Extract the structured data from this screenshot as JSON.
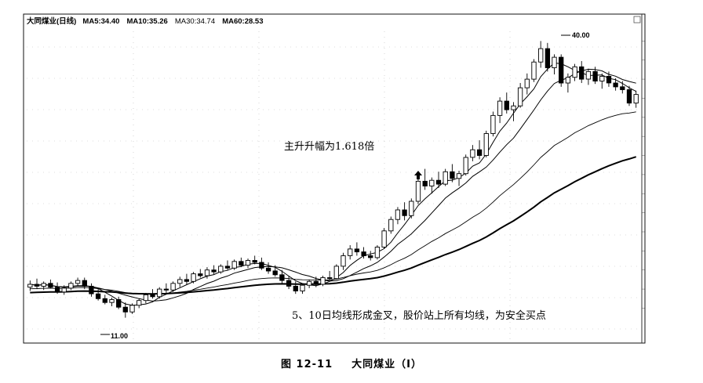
{
  "header": {
    "name": "大同煤业(日线)",
    "ma5": "MA5:34.40",
    "ma10": "MA10:35.26",
    "ma30": "MA30:34.74",
    "ma60": "MA60:28.53"
  },
  "caption": {
    "fig_no": "图 12-11",
    "title": "大同煤业（Ⅰ）"
  },
  "chart_data": {
    "type": "candlestick",
    "title": "大同煤业(日线)",
    "price_range": [
      9,
      42
    ],
    "series": [
      {
        "name": "MA5",
        "last": 34.4
      },
      {
        "name": "MA10",
        "last": 35.26
      },
      {
        "name": "MA30",
        "last": 34.74
      },
      {
        "name": "MA60",
        "last": 28.53
      }
    ],
    "ohlc": [
      [
        14.2,
        14.9,
        13.8,
        14.5
      ],
      [
        14.5,
        15.1,
        14.0,
        14.3
      ],
      [
        14.3,
        14.8,
        13.9,
        14.6
      ],
      [
        14.6,
        15.0,
        14.1,
        14.2
      ],
      [
        14.2,
        14.7,
        13.5,
        13.7
      ],
      [
        13.7,
        14.4,
        13.4,
        14.1
      ],
      [
        14.1,
        14.8,
        13.9,
        14.6
      ],
      [
        14.6,
        15.2,
        14.3,
        14.9
      ],
      [
        14.9,
        15.2,
        14.0,
        14.3
      ],
      [
        14.3,
        14.6,
        13.2,
        13.5
      ],
      [
        13.5,
        14.0,
        12.8,
        13.0
      ],
      [
        13.0,
        13.4,
        12.4,
        12.6
      ],
      [
        12.6,
        13.1,
        12.2,
        12.9
      ],
      [
        12.9,
        13.2,
        11.9,
        12.1
      ],
      [
        12.1,
        12.6,
        11.0,
        11.6
      ],
      [
        11.6,
        12.5,
        11.4,
        12.3
      ],
      [
        12.3,
        13.0,
        12.0,
        12.8
      ],
      [
        12.8,
        13.6,
        12.5,
        13.4
      ],
      [
        13.4,
        14.0,
        13.0,
        13.2
      ],
      [
        13.2,
        14.2,
        13.0,
        14.0
      ],
      [
        14.0,
        14.6,
        13.6,
        13.9
      ],
      [
        13.9,
        14.8,
        13.7,
        14.6
      ],
      [
        14.6,
        15.3,
        14.2,
        15.0
      ],
      [
        15.0,
        15.6,
        14.5,
        14.8
      ],
      [
        14.8,
        15.8,
        14.6,
        15.6
      ],
      [
        15.6,
        16.1,
        15.2,
        15.4
      ],
      [
        15.4,
        16.3,
        15.1,
        16.0
      ],
      [
        16.0,
        16.5,
        15.5,
        15.8
      ],
      [
        15.8,
        16.6,
        15.6,
        16.4
      ],
      [
        16.4,
        17.0,
        16.0,
        16.2
      ],
      [
        16.2,
        17.1,
        16.0,
        16.9
      ],
      [
        16.9,
        17.3,
        16.3,
        16.5
      ],
      [
        16.5,
        17.2,
        16.2,
        17.0
      ],
      [
        17.0,
        17.5,
        16.6,
        16.8
      ],
      [
        16.8,
        17.3,
        16.0,
        16.2
      ],
      [
        16.2,
        16.8,
        15.6,
        15.9
      ],
      [
        15.9,
        16.5,
        15.3,
        15.5
      ],
      [
        15.5,
        16.0,
        14.6,
        14.9
      ],
      [
        14.9,
        15.4,
        14.0,
        14.3
      ],
      [
        14.3,
        14.8,
        13.5,
        13.8
      ],
      [
        13.8,
        14.6,
        13.5,
        14.4
      ],
      [
        14.4,
        15.0,
        14.1,
        14.8
      ],
      [
        14.8,
        15.3,
        14.2,
        14.5
      ],
      [
        14.5,
        15.4,
        14.3,
        15.2
      ],
      [
        15.2,
        15.9,
        14.9,
        15.1
      ],
      [
        15.1,
        16.6,
        15.0,
        16.4
      ],
      [
        16.4,
        17.8,
        16.0,
        17.5
      ],
      [
        17.5,
        18.6,
        17.1,
        18.2
      ],
      [
        18.2,
        18.9,
        17.5,
        17.9
      ],
      [
        17.9,
        18.4,
        17.2,
        17.5
      ],
      [
        17.5,
        18.0,
        17.0,
        17.3
      ],
      [
        17.3,
        18.6,
        17.1,
        18.4
      ],
      [
        18.4,
        20.4,
        18.2,
        20.1
      ],
      [
        20.1,
        21.6,
        19.8,
        21.3
      ],
      [
        21.3,
        22.6,
        20.8,
        22.3
      ],
      [
        22.3,
        23.1,
        21.2,
        21.7
      ],
      [
        21.7,
        23.5,
        21.4,
        23.2
      ],
      [
        23.2,
        25.6,
        22.9,
        25.3
      ],
      [
        25.3,
        26.6,
        24.4,
        24.8
      ],
      [
        24.8,
        25.7,
        24.0,
        25.4
      ],
      [
        25.4,
        26.3,
        24.6,
        25.0
      ],
      [
        25.0,
        26.6,
        24.8,
        26.3
      ],
      [
        26.3,
        27.1,
        25.2,
        25.6
      ],
      [
        25.6,
        26.4,
        24.8,
        26.1
      ],
      [
        26.1,
        28.1,
        25.9,
        27.8
      ],
      [
        27.8,
        29.1,
        27.4,
        28.6
      ],
      [
        28.6,
        29.6,
        27.6,
        28.0
      ],
      [
        28.0,
        30.6,
        27.8,
        30.3
      ],
      [
        30.3,
        32.6,
        30.0,
        32.2
      ],
      [
        32.2,
        34.1,
        31.4,
        33.7
      ],
      [
        33.7,
        34.6,
        32.4,
        32.8
      ],
      [
        32.8,
        33.6,
        31.6,
        33.2
      ],
      [
        33.2,
        35.6,
        33.0,
        35.1
      ],
      [
        35.1,
        36.6,
        34.4,
        36.0
      ],
      [
        36.0,
        38.1,
        35.7,
        37.8
      ],
      [
        37.8,
        40.0,
        37.2,
        39.2
      ],
      [
        39.2,
        39.8,
        36.8,
        37.2
      ],
      [
        37.2,
        38.6,
        36.5,
        38.3
      ],
      [
        38.3,
        38.6,
        35.2,
        35.6
      ],
      [
        35.6,
        36.6,
        34.6,
        36.2
      ],
      [
        36.2,
        37.6,
        35.8,
        37.3
      ],
      [
        37.3,
        37.9,
        35.6,
        36.0
      ],
      [
        36.0,
        37.1,
        35.4,
        36.8
      ],
      [
        36.8,
        37.3,
        35.5,
        35.8
      ],
      [
        35.8,
        36.6,
        35.0,
        36.3
      ],
      [
        36.3,
        36.8,
        35.2,
        35.6
      ],
      [
        35.6,
        36.1,
        34.8,
        35.2
      ],
      [
        35.2,
        35.8,
        34.5,
        34.9
      ],
      [
        34.9,
        35.3,
        33.2,
        33.5
      ],
      [
        33.5,
        34.8,
        33.0,
        34.4
      ]
    ],
    "annotations": [
      {
        "text": "主升升幅为1.618倍"
      },
      {
        "text": "5、10日均线形成金叉，股价站上所有均线，为安全买点"
      },
      {
        "text": "40.00",
        "value": 40.0
      },
      {
        "text": "11.00",
        "value": 11.0
      }
    ],
    "grid": "dotted"
  }
}
